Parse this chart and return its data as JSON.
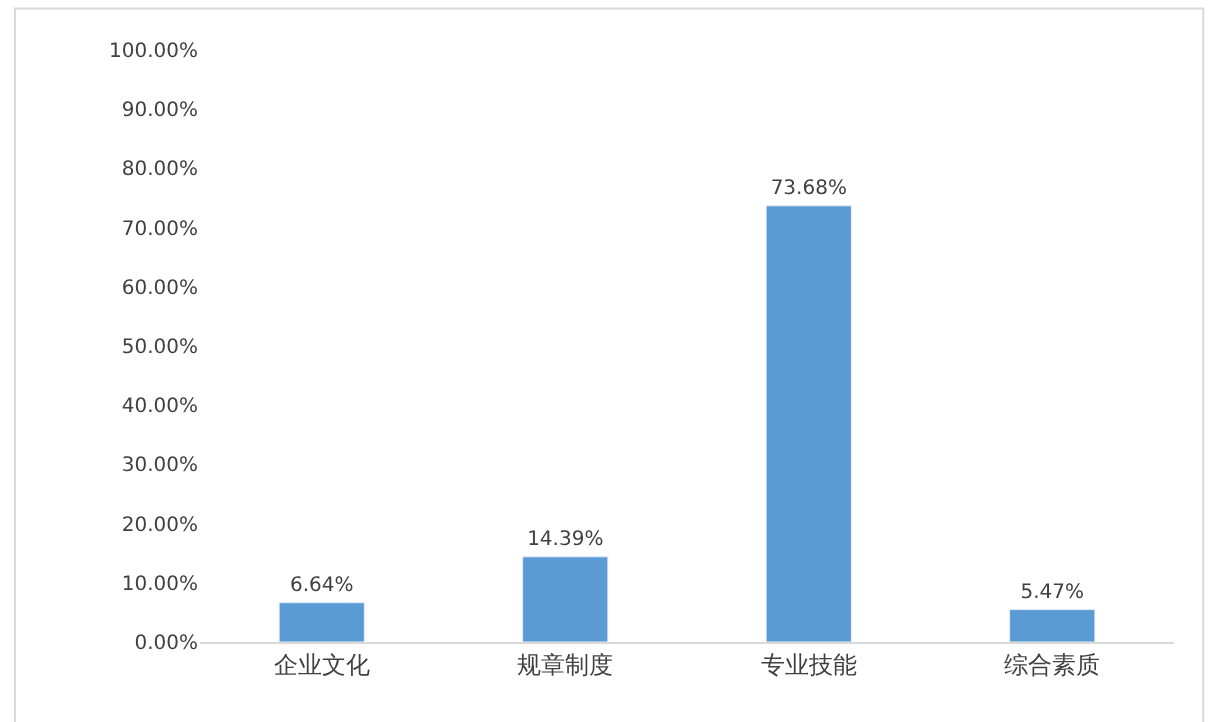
{
  "chart_data": {
    "type": "bar",
    "categories": [
      "企业文化",
      "规章制度",
      "专业技能",
      "综合素质"
    ],
    "values": [
      6.64,
      14.39,
      73.68,
      5.47
    ],
    "value_labels": [
      "6.64%",
      "14.39%",
      "73.68%",
      "5.47%"
    ],
    "color": "#5b9bd5",
    "ylim": [
      0,
      100
    ],
    "yticks": [
      {
        "value": 0,
        "label": "0.00%"
      },
      {
        "value": 10,
        "label": "10.00%"
      },
      {
        "value": 20,
        "label": "20.00%"
      },
      {
        "value": 30,
        "label": "30.00%"
      },
      {
        "value": 40,
        "label": "40.00%"
      },
      {
        "value": 50,
        "label": "50.00%"
      },
      {
        "value": 60,
        "label": "60.00%"
      },
      {
        "value": 70,
        "label": "70.00%"
      },
      {
        "value": 80,
        "label": "80.00%"
      },
      {
        "value": 90,
        "label": "90.00%"
      },
      {
        "value": 100,
        "label": "100.00%"
      }
    ]
  }
}
